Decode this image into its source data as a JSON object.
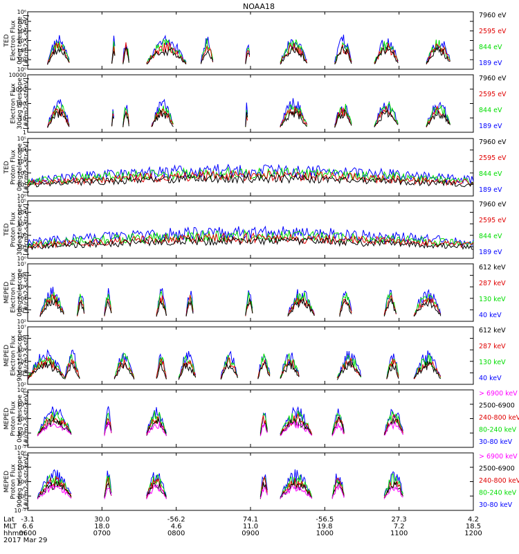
{
  "title": "NOAA18",
  "colors": {
    "black": "#000000",
    "red": "#e00000",
    "green": "#00dd00",
    "blue": "#0000ff",
    "magenta": "#ff00ff",
    "axis": "#000000"
  },
  "chart_data": [
    {
      "type": "line",
      "ylabel": [
        "TED",
        "Electron Flux",
        "0deg telescope",
        "[#/cm2-s-str-eV]"
      ],
      "ylim": [
        1,
        1000000
      ],
      "yscale": "log",
      "yticks": [
        "10⁰",
        "10¹",
        "10²",
        "10³",
        "10⁴",
        "10⁵",
        "10⁶"
      ],
      "series": [
        {
          "name": "7960 eV",
          "color": "black"
        },
        {
          "name": "2595 eV",
          "color": "red"
        },
        {
          "name": "844 eV",
          "color": "green"
        },
        {
          "name": "189 eV",
          "color": "blue"
        }
      ]
    },
    {
      "type": "line",
      "ylabel": [
        "Electron Flux",
        "30deg telescope",
        "[#/cm2-s-str-eV]"
      ],
      "ylim": [
        1,
        10000
      ],
      "yscale": "log",
      "yticks": [
        "1",
        "10",
        "100",
        "1000",
        "10000"
      ],
      "series": [
        {
          "name": "7960 eV",
          "color": "black"
        },
        {
          "name": "2595 eV",
          "color": "red"
        },
        {
          "name": "844 eV",
          "color": "green"
        },
        {
          "name": "189 eV",
          "color": "blue"
        }
      ]
    },
    {
      "type": "line",
      "ylabel": [
        "TED",
        "Proton Flux",
        "0deg telescope",
        "[#/cm2-s-str-eV]"
      ],
      "ylim": [
        1,
        100000
      ],
      "yscale": "log",
      "yticks": [
        "10⁰",
        "10¹",
        "10²",
        "10³",
        "10⁴",
        "10⁵"
      ],
      "series": [
        {
          "name": "7960 eV",
          "color": "black"
        },
        {
          "name": "2595 eV",
          "color": "red"
        },
        {
          "name": "844 eV",
          "color": "green"
        },
        {
          "name": "189 eV",
          "color": "blue"
        }
      ]
    },
    {
      "type": "line",
      "ylabel": [
        "TED",
        "Proton Flux",
        "30deg telescope",
        "[#/cm2-s-str-eV]"
      ],
      "ylim": [
        1,
        100000
      ],
      "yscale": "log",
      "yticks": [
        "10⁰",
        "10¹",
        "10²",
        "10³",
        "10⁴",
        "10⁵"
      ],
      "series": [
        {
          "name": "7960 eV",
          "color": "black"
        },
        {
          "name": "2595 eV",
          "color": "red"
        },
        {
          "name": "844 eV",
          "color": "green"
        },
        {
          "name": "189 eV",
          "color": "blue"
        }
      ]
    },
    {
      "type": "line",
      "ylabel": [
        "MEPED",
        "Electron Flux",
        "0deg telescope",
        "[#/cm2-s-str]"
      ],
      "ylim": [
        100,
        10000000
      ],
      "yscale": "log",
      "yticks": [
        "10²",
        "10³",
        "10⁴",
        "10⁵",
        "10⁶",
        "10⁷"
      ],
      "series": [
        {
          "name": "612 keV",
          "color": "black"
        },
        {
          "name": "287 keV",
          "color": "red"
        },
        {
          "name": "130 keV",
          "color": "green"
        },
        {
          "name": "40 keV",
          "color": "blue"
        }
      ]
    },
    {
      "type": "line",
      "ylabel": [
        "MEPED",
        "Electron Flux",
        "90deg telescope",
        "[#/cm2-s-str]"
      ],
      "ylim": [
        100,
        10000000
      ],
      "yscale": "log",
      "yticks": [
        "10²",
        "10³",
        "10⁴",
        "10⁵",
        "10⁶",
        "10⁷"
      ],
      "series": [
        {
          "name": "612 keV",
          "color": "black"
        },
        {
          "name": "287 keV",
          "color": "red"
        },
        {
          "name": "130 keV",
          "color": "green"
        },
        {
          "name": "40 keV",
          "color": "blue"
        }
      ]
    },
    {
      "type": "line",
      "ylabel": [
        "MEPED",
        "Proton Flux",
        "0deg telescope",
        "[#/cm2-s-str-keV]"
      ],
      "ylim": [
        0.01,
        1000000
      ],
      "yscale": "log",
      "yticks": [
        "10⁻²",
        "10⁰",
        "10²",
        "10⁴",
        "10⁶"
      ],
      "series": [
        {
          "name": "> 6900 keV",
          "color": "magenta"
        },
        {
          "name": "2500-6900",
          "color": "black"
        },
        {
          "name": "240-800 keV",
          "color": "red"
        },
        {
          "name": "80-240 keV",
          "color": "green"
        },
        {
          "name": "30-80 keV",
          "color": "blue"
        }
      ]
    },
    {
      "type": "line",
      "ylabel": [
        "MEPED",
        "Proton Flux",
        "90deg telescope",
        "[#/cm2-s-str-keV]"
      ],
      "ylim": [
        0.01,
        1000000
      ],
      "yscale": "log",
      "yticks": [
        "10⁻²",
        "10⁰",
        "10²",
        "10⁴",
        "10⁶"
      ],
      "series": [
        {
          "name": "> 6900 keV",
          "color": "magenta"
        },
        {
          "name": "2500-6900",
          "color": "black"
        },
        {
          "name": "240-800 keV",
          "color": "red"
        },
        {
          "name": "80-240 keV",
          "color": "green"
        },
        {
          "name": "30-80 keV",
          "color": "blue"
        }
      ]
    }
  ],
  "x_axis": {
    "row_labels": [
      "Lat",
      "MLT",
      "hhmm"
    ],
    "date": "2017 Mar 29",
    "ticks": [
      {
        "t": 0,
        "lat": "-3.1",
        "mlt": "6.6",
        "hhmm": "0600"
      },
      {
        "t": 60,
        "lat": "30.0",
        "mlt": "18.0",
        "hhmm": "0700"
      },
      {
        "t": 120,
        "lat": "-56.2",
        "mlt": "4.6",
        "hhmm": "0800"
      },
      {
        "t": 180,
        "lat": "74.1",
        "mlt": "11.0",
        "hhmm": "0900"
      },
      {
        "t": 240,
        "lat": "-56.5",
        "mlt": "19.8",
        "hhmm": "1000"
      },
      {
        "t": 300,
        "lat": "27.3",
        "mlt": "7.2",
        "hhmm": "1100"
      },
      {
        "t": 360,
        "lat": "4.2",
        "mlt": "18.5",
        "hhmm": "1200"
      }
    ]
  }
}
